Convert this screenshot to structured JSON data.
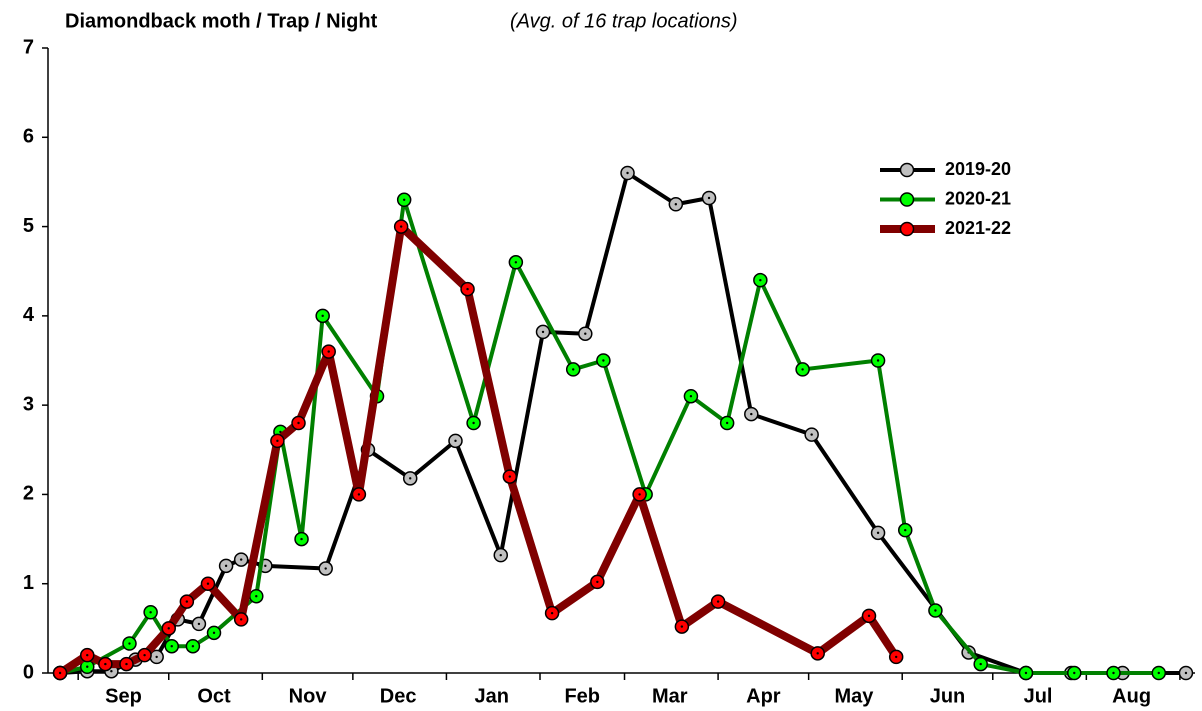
{
  "chart_data": {
    "type": "line",
    "title": "Diamondback moth / Trap / Night",
    "subtitle": "(Avg. of 16 trap locations)",
    "xlim": [
      -10,
      370
    ],
    "xticks": [
      {
        "value": 15,
        "label": "Sep"
      },
      {
        "value": 45,
        "label": "Oct"
      },
      {
        "value": 76,
        "label": "Nov"
      },
      {
        "value": 106,
        "label": "Dec"
      },
      {
        "value": 137,
        "label": "Jan"
      },
      {
        "value": 167,
        "label": "Feb"
      },
      {
        "value": 196,
        "label": "Mar"
      },
      {
        "value": 227,
        "label": "Apr"
      },
      {
        "value": 257,
        "label": "May"
      },
      {
        "value": 288,
        "label": "Jun"
      },
      {
        "value": 318,
        "label": "Jul"
      },
      {
        "value": 349,
        "label": "Aug"
      }
    ],
    "x_minor_ticks": [
      0,
      30,
      61,
      91,
      122,
      153,
      181,
      212,
      242,
      273,
      303,
      334,
      365
    ],
    "ylim": [
      0,
      7
    ],
    "yticks": [
      0,
      1,
      2,
      3,
      4,
      5,
      6,
      7
    ],
    "legend": "upper right",
    "series": [
      {
        "name": "2019-20",
        "color": "#000000",
        "marker_color": "#c0c0c0",
        "line_width": 4,
        "x": [
          -6,
          3,
          11,
          19,
          26,
          33,
          40,
          49,
          54,
          62,
          82,
          96,
          110,
          125,
          140,
          154,
          168,
          182,
          198,
          209,
          223,
          243,
          265,
          295,
          314,
          329,
          346,
          367
        ],
        "values": [
          0,
          0.02,
          0.02,
          0.15,
          0.18,
          0.6,
          0.55,
          1.2,
          1.27,
          1.2,
          1.17,
          2.5,
          2.18,
          2.6,
          1.32,
          3.82,
          3.8,
          5.6,
          5.25,
          5.32,
          2.9,
          2.67,
          1.57,
          0.23,
          0,
          0,
          0,
          0
        ]
      },
      {
        "name": "2020-21",
        "color": "#008000",
        "marker_color": "#00ff00",
        "line_width": 4,
        "x": [
          -6,
          3,
          17,
          24,
          31,
          38,
          45,
          59,
          67,
          74,
          81,
          99,
          108,
          131,
          145,
          164,
          174,
          188,
          203,
          215,
          226,
          240,
          265,
          274,
          284,
          299,
          314,
          330,
          343,
          358
        ],
        "values": [
          0,
          0.07,
          0.33,
          0.68,
          0.3,
          0.3,
          0.45,
          0.86,
          2.7,
          1.5,
          4.0,
          3.1,
          5.3,
          2.8,
          4.6,
          3.4,
          3.5,
          2.0,
          3.1,
          2.8,
          4.4,
          3.4,
          3.5,
          1.6,
          0.7,
          0.1,
          0,
          0,
          0,
          0
        ]
      },
      {
        "name": "2021-22",
        "color": "#800000",
        "marker_color": "#ff0000",
        "line_width": 8,
        "x": [
          -6,
          3,
          9,
          16,
          22,
          30,
          36,
          43,
          54,
          66,
          73,
          83,
          93,
          107,
          129,
          143,
          157,
          172,
          186,
          200,
          212,
          245,
          262,
          271
        ],
        "values": [
          0,
          0.2,
          0.1,
          0.1,
          0.2,
          0.5,
          0.8,
          1.0,
          0.6,
          2.6,
          2.8,
          3.6,
          2.0,
          5.0,
          4.3,
          2.2,
          0.67,
          1.02,
          2.0,
          0.52,
          0.8,
          0.22,
          0.64,
          0.18
        ]
      }
    ]
  }
}
